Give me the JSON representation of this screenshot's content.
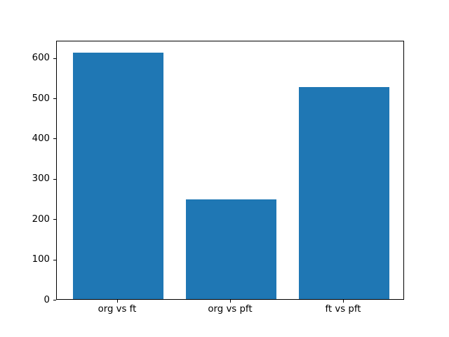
{
  "chart_data": {
    "type": "bar",
    "categories": [
      "org vs ft",
      "org vs pft",
      "ft vs pft"
    ],
    "values": [
      612,
      248,
      526
    ],
    "x": [
      0,
      1,
      2
    ],
    "title": "",
    "xlabel": "",
    "ylabel": "",
    "ylim": [
      0,
      643
    ],
    "xlim": [
      -0.54,
      2.54
    ],
    "yticks": [
      0,
      100,
      200,
      300,
      400,
      500,
      600
    ],
    "bar_width": 0.8,
    "bar_color": "#1f77b4",
    "spine_color": "#000000",
    "background_color": "#ffffff",
    "grid": false,
    "legend": null
  }
}
